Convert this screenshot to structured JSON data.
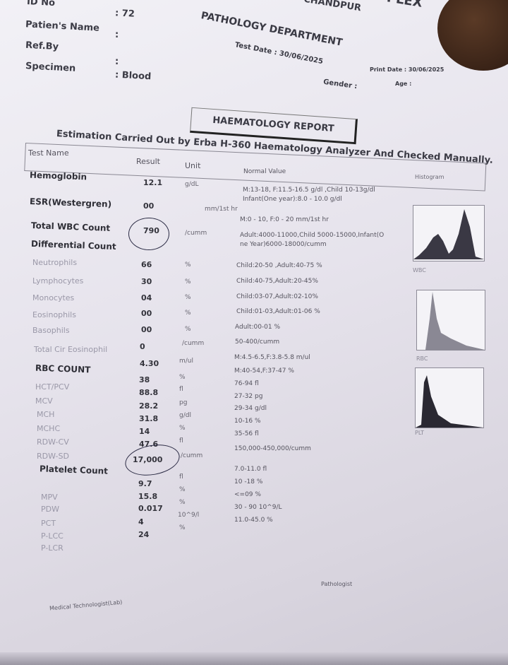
{
  "header": {
    "org_top": "CHANDPUR",
    "org_suffix": "PLEX",
    "department": "PATHOLOGY DEPARTMENT",
    "id_label": "ID No",
    "id_value": ": 72",
    "patient_label": "Patien's Name",
    "patient_value": ":",
    "refby_label": "Ref.By",
    "refby_value": ":",
    "specimen_label": "Specimen",
    "specimen_value": ": Blood",
    "test_date": "Test Date :  30/06/2025",
    "gender": "Gender  :",
    "print_date": "Print Date  :  30/06/2025",
    "age": "Age  :"
  },
  "report_title": "HAEMATOLOGY REPORT",
  "estimation": "Estimation Carried Out by  Erba H-360 Haematology Analyzer And Checked Manually.",
  "columns": {
    "test": "Test Name",
    "result": "Result",
    "unit": "Unit",
    "normal": "Normal Value",
    "histogram": "Histogram"
  },
  "rows": [
    {
      "name": "Hemoglobin",
      "result": "12.1",
      "unit": "g/dL",
      "normal": "M:13-18, F:11.5-16.5 g/dl ,Child 10-13g/dl",
      "normal2": "Infant(One year):8.0 - 10.0 g/dl"
    },
    {
      "name": "ESR(Westergren)",
      "result": "00",
      "unit": "mm/1st hr",
      "normal": "M:0 - 10, F:0 - 20 mm/1st hr"
    },
    {
      "name": "Total WBC Count",
      "result": "790",
      "unit": "/cumm",
      "normal": "Adult:4000-11000,Child 5000-15000,Infant(O",
      "normal2": "ne Year)6000-18000/cumm"
    },
    {
      "name": "Differential Count"
    },
    {
      "name": "Neutrophils",
      "result": "66",
      "unit": "%",
      "normal": "Child:20-50 ,Adult:40-75 %"
    },
    {
      "name": "Lymphocytes",
      "result": "30",
      "unit": "%",
      "normal": "Child:40-75,Adult:20-45%"
    },
    {
      "name": "Monocytes",
      "result": "04",
      "unit": "%",
      "normal": "Child:03-07,Adult:02-10%"
    },
    {
      "name": "Eosinophils",
      "result": "00",
      "unit": "%",
      "normal": "Child:01-03,Adult:01-06 %"
    },
    {
      "name": "Basophils",
      "result": "00",
      "unit": "%",
      "normal": "Adult:00-01 %"
    },
    {
      "name": "Total Cir Eosinophil",
      "result": "0",
      "unit": "/cumm",
      "normal": "50-400/cumm"
    },
    {
      "name": "RBC COUNT",
      "result": "4.30",
      "unit": "m/ul",
      "normal": "M:4.5-6.5,F:3.8-5.8 m/ul"
    },
    {
      "name": "HCT/PCV",
      "result": "38",
      "unit": "%",
      "normal": "M:40-54,F:37-47 %"
    },
    {
      "name": "MCV",
      "result": "88.8",
      "unit": "fl",
      "normal": "76-94 fl"
    },
    {
      "name": "MCH",
      "result": "28.2",
      "unit": "pg",
      "normal": "27-32 pg"
    },
    {
      "name": "MCHC",
      "result": "31.8",
      "unit": "g/dl",
      "normal": "29-34 g/dl"
    },
    {
      "name": "RDW-CV",
      "result": "14",
      "unit": "%",
      "normal": "10-16 %"
    },
    {
      "name": "RDW-SD",
      "result": "47.6",
      "unit": "fl",
      "normal": "35-56 fl"
    },
    {
      "name": "Platelet Count",
      "result": "17,000",
      "unit": "/cumm",
      "normal": "150,000-450,000/cumm"
    },
    {
      "name": "MPV",
      "result": "9.7",
      "unit": "fl",
      "normal": "7.0-11.0 fl"
    },
    {
      "name": "PDW",
      "result": "15.8",
      "unit": "%",
      "normal": "10 -18 %"
    },
    {
      "name": "PCT",
      "result": "0.017",
      "unit": "%",
      "normal": "<=09 %"
    },
    {
      "name": "P-LCC",
      "result": "4",
      "unit": "10^9/l",
      "normal": "30 - 90 10^9/L"
    },
    {
      "name": "P-LCR",
      "result": "24",
      "unit": "%",
      "normal": "11.0-45.0 %"
    }
  ],
  "histograms": [
    {
      "label": "WBC"
    },
    {
      "label": "RBC"
    },
    {
      "label": "PLT"
    }
  ],
  "footer": {
    "pathologist": "Pathologist",
    "technologist": "Medical Technologist(Lab)"
  }
}
